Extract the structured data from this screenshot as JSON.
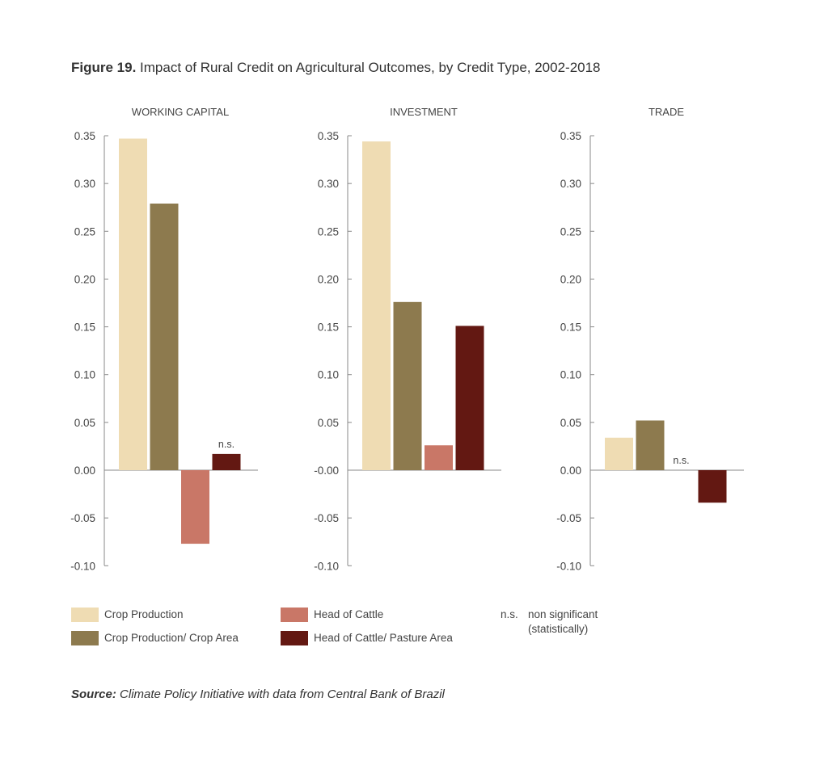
{
  "title": {
    "label": "Figure 19.",
    "text": "Impact of Rural Credit on Agricultural Outcomes, by Credit Type, 2002-2018"
  },
  "source": {
    "label": "Source:",
    "text": "Climate Policy Initiative with data from Central Bank of Brazil"
  },
  "colors": {
    "Crop Production": "#efdcb3",
    "Crop Production/ Crop Area": "#8d7a4e",
    "Head of Cattle": "#c97767",
    "Head of Cattle/ Pasture Area": "#631812"
  },
  "legend": {
    "items": [
      "Crop Production",
      "Crop Production/ Crop Area",
      "Head of Cattle",
      "Head of Cattle/ Pasture Area"
    ],
    "ns_key": "n.s.",
    "ns_text_1": "non significant",
    "ns_text_2": "(statistically)"
  },
  "chart_data": [
    {
      "type": "bar",
      "title": "WORKING CAPITAL",
      "ylim": [
        -0.1,
        0.35
      ],
      "yticks": [
        "0.35",
        "0.30",
        "0.25",
        "0.20",
        "0.15",
        "0.10",
        "0.05",
        "0.00",
        "-0.05",
        "-0.10"
      ],
      "series": [
        {
          "name": "Crop Production",
          "value": 0.347
        },
        {
          "name": "Crop Production/ Crop Area",
          "value": 0.279
        },
        {
          "name": "Head of Cattle",
          "value": -0.077
        },
        {
          "name": "Head of Cattle/ Pasture Area",
          "value": 0.017,
          "annotation": "n.s."
        }
      ]
    },
    {
      "type": "bar",
      "title": "INVESTMENT",
      "ylim": [
        -0.1,
        0.35
      ],
      "yticks": [
        "0.35",
        "0.30",
        "0.25",
        "0.20",
        "0.15",
        "0.10",
        "0.05",
        "-0.00",
        "-0.05",
        "-0.10"
      ],
      "series": [
        {
          "name": "Crop Production",
          "value": 0.344
        },
        {
          "name": "Crop Production/ Crop Area",
          "value": 0.176
        },
        {
          "name": "Head of Cattle",
          "value": 0.026
        },
        {
          "name": "Head of Cattle/ Pasture Area",
          "value": 0.151
        }
      ]
    },
    {
      "type": "bar",
      "title": "TRADE",
      "ylim": [
        -0.1,
        0.35
      ],
      "yticks": [
        "0.35",
        "0.30",
        "0.25",
        "0.20",
        "0.15",
        "0.10",
        "0.05",
        "0.00",
        "-0.05",
        "-0.10"
      ],
      "series": [
        {
          "name": "Crop Production",
          "value": 0.034
        },
        {
          "name": "Crop Production/ Crop Area",
          "value": 0.052
        },
        {
          "name": "Head of Cattle",
          "value": 0,
          "annotation": "n.s."
        },
        {
          "name": "Head of Cattle/ Pasture Area",
          "value": -0.034
        }
      ]
    }
  ]
}
